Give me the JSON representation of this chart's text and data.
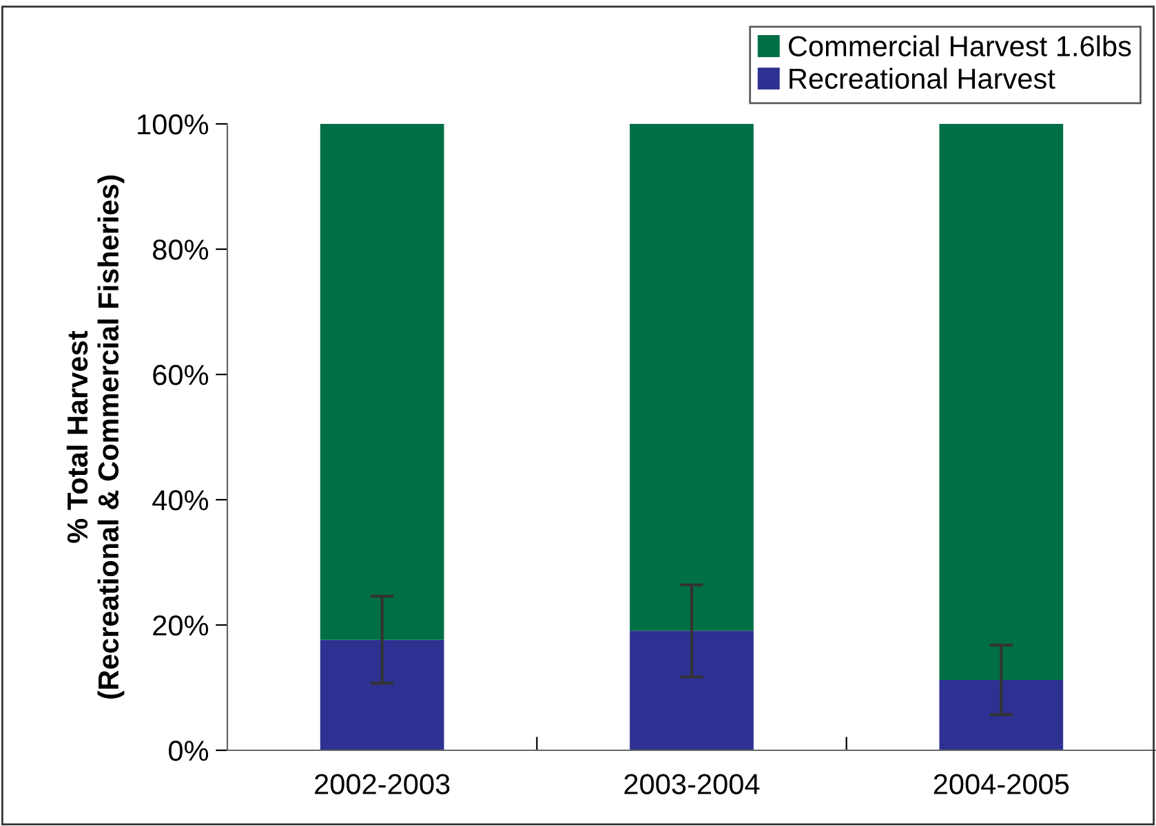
{
  "chart_data": {
    "type": "bar",
    "stacked": true,
    "ylabel": "% Total Harvest\n(Recreational & Commercial Fisheries)",
    "categories": [
      "2002-2003",
      "2003-2004",
      "2004-2005"
    ],
    "series": [
      {
        "name": "Recreational Harvest",
        "color": "#2e3192",
        "values": [
          17.6,
          19.1,
          11.2
        ],
        "errors": [
          [
            10.7,
            24.6
          ],
          [
            11.7,
            26.4
          ],
          [
            5.7,
            16.8
          ]
        ]
      },
      {
        "name": "Commercial Harvest 1.6lbs",
        "color": "#006f45",
        "values": [
          82.4,
          80.9,
          88.8
        ]
      }
    ],
    "ylim": [
      0,
      100
    ],
    "yticks": [
      {
        "value": 0,
        "label": "0%"
      },
      {
        "value": 20,
        "label": "20%"
      },
      {
        "value": 40,
        "label": "40%"
      },
      {
        "value": 60,
        "label": "60%"
      },
      {
        "value": 80,
        "label": "80%"
      },
      {
        "value": 100,
        "label": "100%"
      }
    ],
    "grid": false,
    "legend": "top right"
  }
}
